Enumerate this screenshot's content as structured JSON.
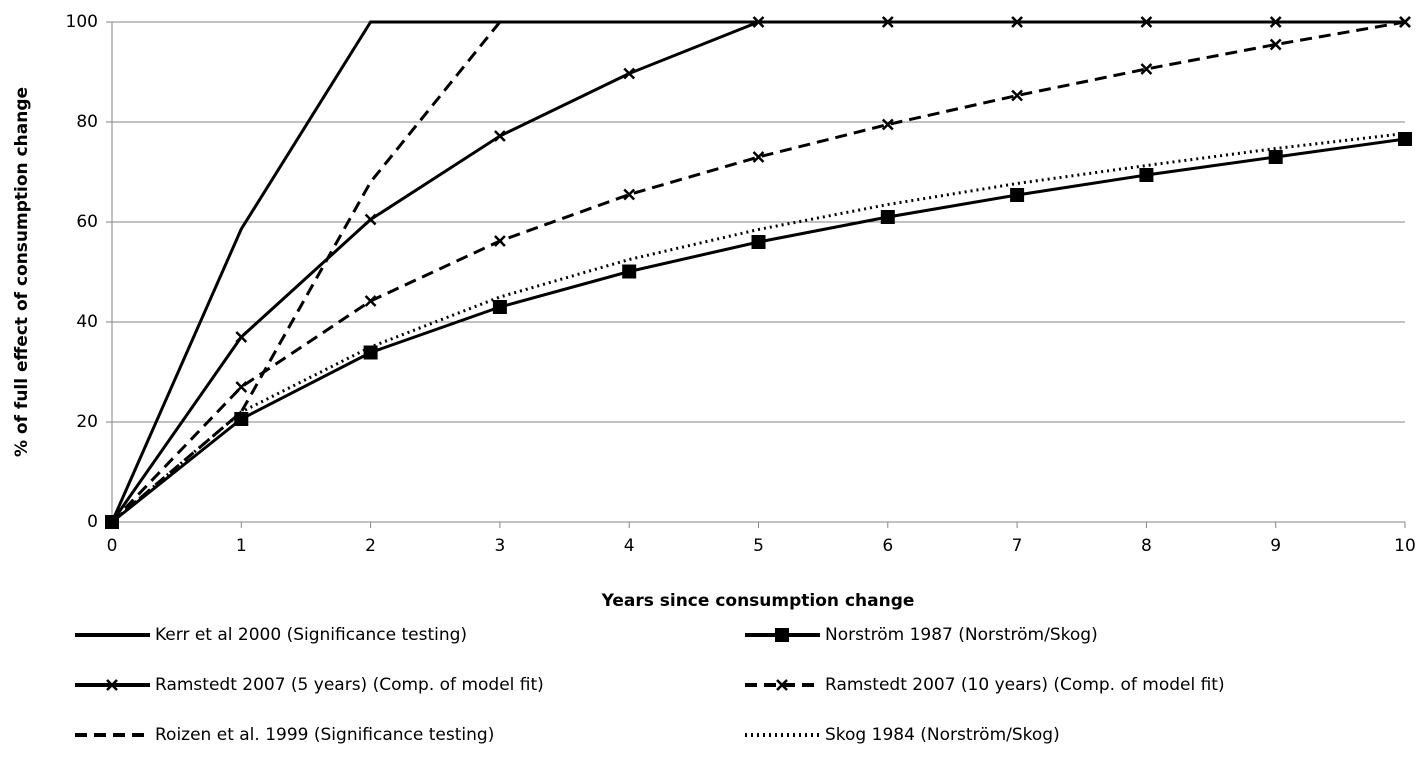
{
  "chart_data": {
    "type": "line",
    "x_label": "Years since consumption change",
    "y_label": "% of full effect of consumption change",
    "x": [
      0,
      1,
      2,
      3,
      4,
      5,
      6,
      7,
      8,
      9,
      10
    ],
    "xlim": [
      0,
      10
    ],
    "xticks": [
      0,
      1,
      2,
      3,
      4,
      5,
      6,
      7,
      8,
      9,
      10
    ],
    "ylim": [
      0,
      100
    ],
    "yticks": [
      0,
      20,
      40,
      60,
      80,
      100
    ],
    "grid": true,
    "series": [
      {
        "name": "Kerr et al 2000 (Significance testing)",
        "color": "#000000",
        "dash": "solid",
        "marker": "none",
        "values": [
          0,
          58.6,
          100,
          100,
          100,
          100,
          100,
          100,
          100,
          100,
          100
        ]
      },
      {
        "name": "Norström 1987 (Norström/Skog)",
        "color": "#000000",
        "dash": "solid",
        "marker": "square",
        "values": [
          0,
          20.6,
          33.9,
          43.0,
          50.1,
          56.0,
          61.0,
          65.4,
          69.4,
          73.0,
          76.6
        ]
      },
      {
        "name": "Ramstedt 2007 (5 years) (Comp. of model fit)",
        "color": "#000000",
        "dash": "solid",
        "marker": "x",
        "values": [
          0,
          37,
          60.5,
          77.2,
          89.7,
          100,
          100,
          100,
          100,
          100,
          100
        ]
      },
      {
        "name": "Ramstedt 2007 (10 years) (Comp. of model fit)",
        "color": "#000000",
        "dash": "dash",
        "marker": "x",
        "values": [
          0,
          27,
          44.2,
          56.2,
          65.5,
          73,
          79.5,
          85.3,
          90.6,
          95.5,
          100
        ]
      },
      {
        "name": "Roizen et al. 1999 (Significance testing)",
        "color": "#000000",
        "dash": "dash",
        "marker": "none",
        "values": [
          0,
          22,
          68,
          100,
          100,
          100,
          100,
          100,
          100,
          100,
          100
        ]
      },
      {
        "name": "Skog 1984 (Norström/Skog)",
        "color": "#000000",
        "dash": "dot",
        "marker": "none",
        "values": [
          0,
          22,
          35,
          45,
          52.5,
          58.5,
          63.5,
          67.7,
          71.3,
          74.7,
          77.7
        ]
      }
    ]
  }
}
